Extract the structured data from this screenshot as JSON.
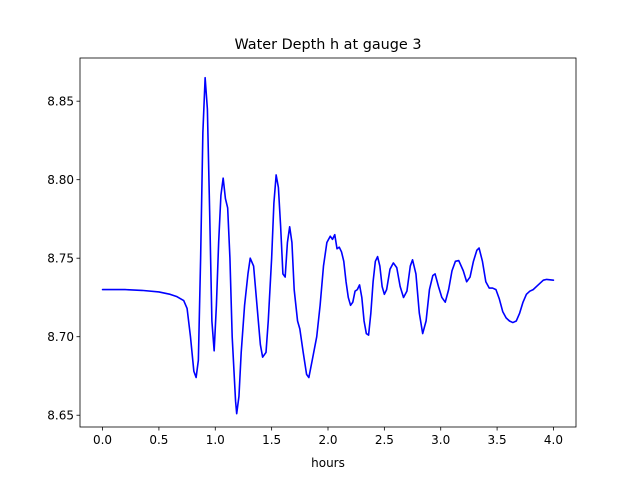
{
  "chart_data": {
    "type": "line",
    "title": "Water Depth h at gauge 3",
    "xlabel": "hours",
    "ylabel": "",
    "xlim": [
      -0.2,
      4.2
    ],
    "ylim": [
      8.6425,
      8.8775
    ],
    "xticks": [
      0.0,
      0.5,
      1.0,
      1.5,
      2.0,
      2.5,
      3.0,
      3.5,
      4.0
    ],
    "xtick_labels": [
      "0.0",
      "0.5",
      "1.0",
      "1.5",
      "2.0",
      "2.5",
      "3.0",
      "3.5",
      "4.0"
    ],
    "yticks": [
      8.65,
      8.7,
      8.75,
      8.8,
      8.85
    ],
    "ytick_labels": [
      "8.65",
      "8.70",
      "8.75",
      "8.80",
      "8.85"
    ],
    "grid": false,
    "legend": "none",
    "series": [
      {
        "color": "#0000ff",
        "points": [
          [
            0.0,
            8.73
          ],
          [
            0.2,
            8.73
          ],
          [
            0.35,
            8.7295
          ],
          [
            0.5,
            8.7285
          ],
          [
            0.6,
            8.727
          ],
          [
            0.66,
            8.7255
          ],
          [
            0.72,
            8.723
          ],
          [
            0.75,
            8.718
          ],
          [
            0.78,
            8.7
          ],
          [
            0.81,
            8.678
          ],
          [
            0.83,
            8.674
          ],
          [
            0.85,
            8.685
          ],
          [
            0.87,
            8.75
          ],
          [
            0.89,
            8.83
          ],
          [
            0.91,
            8.865
          ],
          [
            0.93,
            8.845
          ],
          [
            0.95,
            8.78
          ],
          [
            0.97,
            8.71
          ],
          [
            0.99,
            8.691
          ],
          [
            1.01,
            8.72
          ],
          [
            1.03,
            8.76
          ],
          [
            1.05,
            8.79
          ],
          [
            1.07,
            8.801
          ],
          [
            1.09,
            8.788
          ],
          [
            1.11,
            8.782
          ],
          [
            1.13,
            8.75
          ],
          [
            1.15,
            8.7
          ],
          [
            1.18,
            8.659
          ],
          [
            1.19,
            8.651
          ],
          [
            1.21,
            8.662
          ],
          [
            1.23,
            8.69
          ],
          [
            1.26,
            8.72
          ],
          [
            1.29,
            8.74
          ],
          [
            1.31,
            8.75
          ],
          [
            1.34,
            8.745
          ],
          [
            1.37,
            8.72
          ],
          [
            1.4,
            8.695
          ],
          [
            1.42,
            8.687
          ],
          [
            1.45,
            8.69
          ],
          [
            1.47,
            8.71
          ],
          [
            1.5,
            8.75
          ],
          [
            1.52,
            8.785
          ],
          [
            1.54,
            8.803
          ],
          [
            1.56,
            8.795
          ],
          [
            1.58,
            8.77
          ],
          [
            1.6,
            8.74
          ],
          [
            1.62,
            8.738
          ],
          [
            1.64,
            8.76
          ],
          [
            1.66,
            8.77
          ],
          [
            1.68,
            8.76
          ],
          [
            1.7,
            8.73
          ],
          [
            1.73,
            8.71
          ],
          [
            1.75,
            8.705
          ],
          [
            1.78,
            8.69
          ],
          [
            1.81,
            8.676
          ],
          [
            1.83,
            8.674
          ],
          [
            1.86,
            8.685
          ],
          [
            1.9,
            8.7
          ],
          [
            1.93,
            8.72
          ],
          [
            1.96,
            8.745
          ],
          [
            1.99,
            8.76
          ],
          [
            2.02,
            8.764
          ],
          [
            2.04,
            8.762
          ],
          [
            2.06,
            8.765
          ],
          [
            2.08,
            8.756
          ],
          [
            2.1,
            8.757
          ],
          [
            2.12,
            8.754
          ],
          [
            2.14,
            8.748
          ],
          [
            2.16,
            8.735
          ],
          [
            2.18,
            8.725
          ],
          [
            2.2,
            8.72
          ],
          [
            2.22,
            8.722
          ],
          [
            2.24,
            8.729
          ],
          [
            2.26,
            8.73
          ],
          [
            2.28,
            8.733
          ],
          [
            2.3,
            8.725
          ],
          [
            2.32,
            8.71
          ],
          [
            2.34,
            8.702
          ],
          [
            2.36,
            8.701
          ],
          [
            2.38,
            8.715
          ],
          [
            2.4,
            8.735
          ],
          [
            2.42,
            8.748
          ],
          [
            2.44,
            8.751
          ],
          [
            2.46,
            8.745
          ],
          [
            2.48,
            8.732
          ],
          [
            2.5,
            8.727
          ],
          [
            2.52,
            8.73
          ],
          [
            2.55,
            8.743
          ],
          [
            2.58,
            8.747
          ],
          [
            2.61,
            8.744
          ],
          [
            2.64,
            8.732
          ],
          [
            2.67,
            8.725
          ],
          [
            2.7,
            8.729
          ],
          [
            2.73,
            8.745
          ],
          [
            2.75,
            8.749
          ],
          [
            2.78,
            8.74
          ],
          [
            2.81,
            8.715
          ],
          [
            2.84,
            8.702
          ],
          [
            2.87,
            8.71
          ],
          [
            2.9,
            8.73
          ],
          [
            2.93,
            8.739
          ],
          [
            2.95,
            8.74
          ],
          [
            2.98,
            8.732
          ],
          [
            3.01,
            8.725
          ],
          [
            3.04,
            8.722
          ],
          [
            3.07,
            8.73
          ],
          [
            3.1,
            8.742
          ],
          [
            3.13,
            8.748
          ],
          [
            3.16,
            8.7485
          ],
          [
            3.2,
            8.742
          ],
          [
            3.23,
            8.735
          ],
          [
            3.26,
            8.738
          ],
          [
            3.29,
            8.748
          ],
          [
            3.32,
            8.755
          ],
          [
            3.34,
            8.7565
          ],
          [
            3.37,
            8.748
          ],
          [
            3.4,
            8.735
          ],
          [
            3.43,
            8.731
          ],
          [
            3.46,
            8.731
          ],
          [
            3.49,
            8.73
          ],
          [
            3.52,
            8.724
          ],
          [
            3.55,
            8.716
          ],
          [
            3.58,
            8.712
          ],
          [
            3.61,
            8.71
          ],
          [
            3.64,
            8.709
          ],
          [
            3.67,
            8.71
          ],
          [
            3.7,
            8.715
          ],
          [
            3.73,
            8.722
          ],
          [
            3.76,
            8.727
          ],
          [
            3.79,
            8.729
          ],
          [
            3.82,
            8.73
          ],
          [
            3.85,
            8.732
          ],
          [
            3.88,
            8.734
          ],
          [
            3.91,
            8.736
          ],
          [
            3.94,
            8.7365
          ],
          [
            4.0,
            8.736
          ]
        ]
      }
    ]
  }
}
